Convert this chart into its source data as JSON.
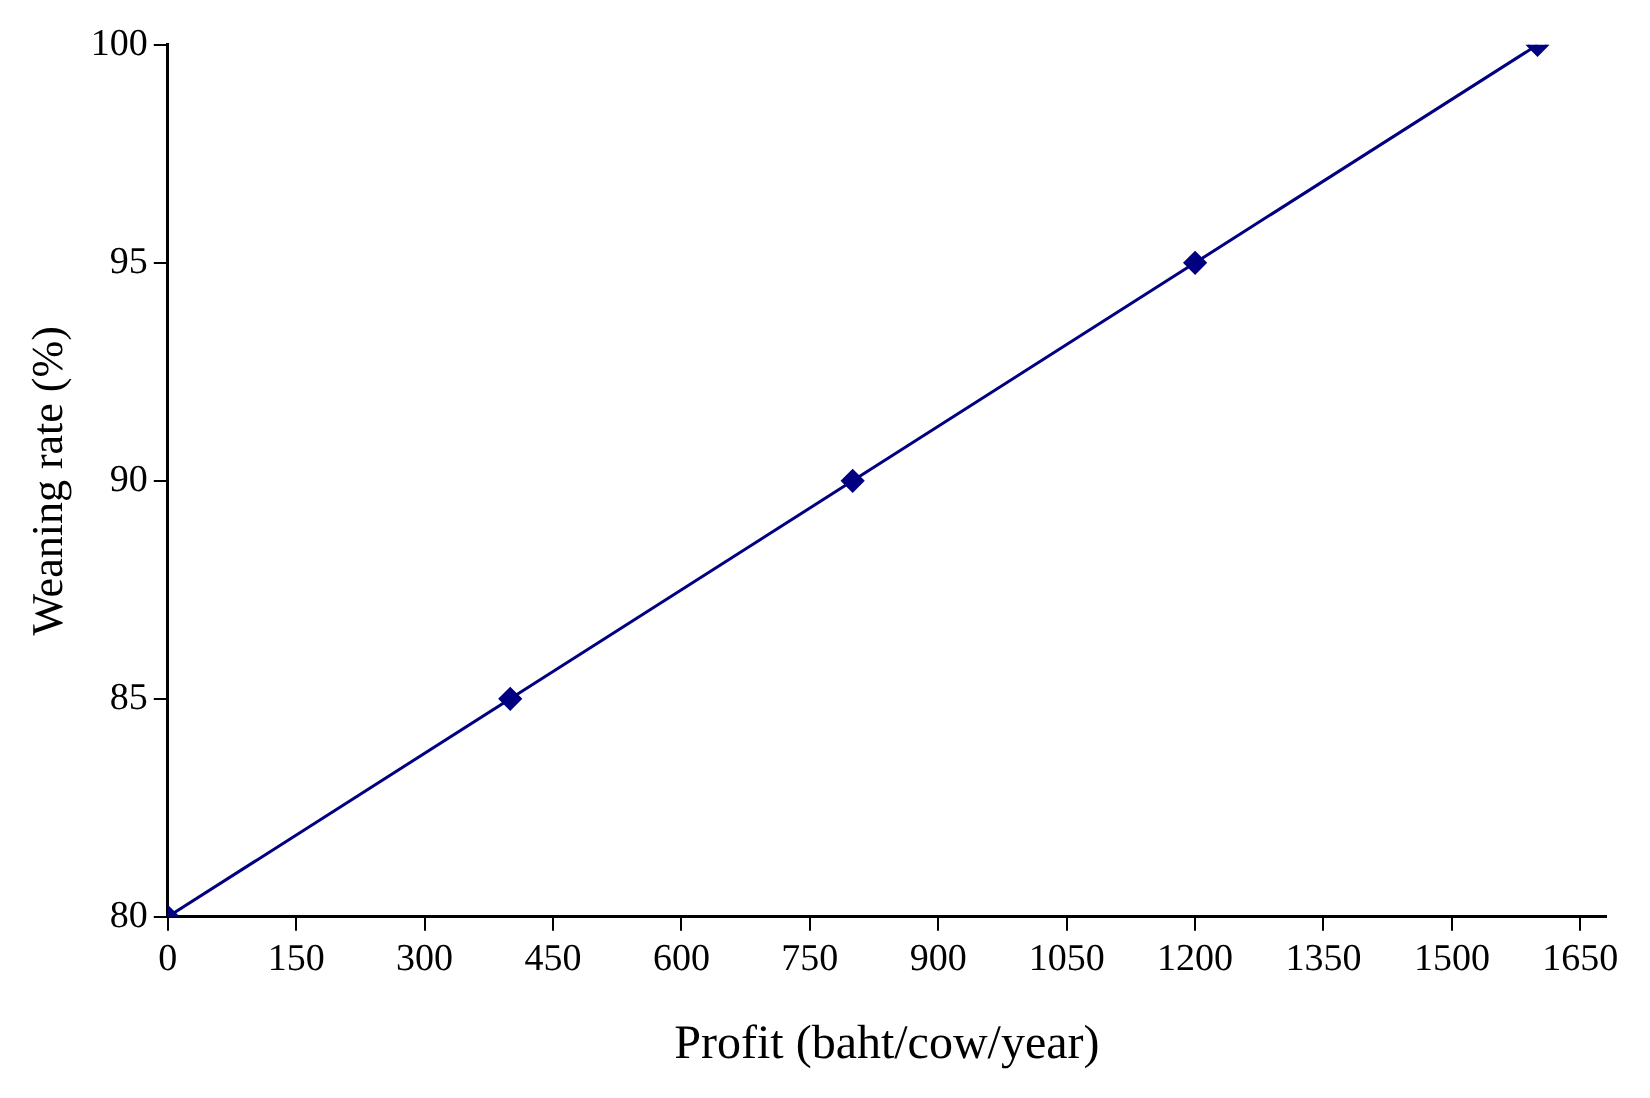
{
  "chart_data": {
    "type": "line",
    "xlabel": "Profit (baht/cow/year)",
    "ylabel": "Weaning rate (%)",
    "x": [
      0,
      400,
      800,
      1200,
      1600
    ],
    "series": [
      {
        "color": "#000080",
        "values": [
          80,
          85,
          90,
          95,
          100
        ]
      }
    ],
    "xlim": [
      0,
      1680
    ],
    "xticks": [
      0,
      150,
      300,
      450,
      600,
      750,
      900,
      1050,
      1200,
      1350,
      1500,
      1650
    ],
    "ylim": [
      80,
      100
    ],
    "yticks": [
      80,
      85,
      90,
      95,
      100
    ],
    "grid": false,
    "legend": false,
    "marker": "diamond",
    "line_style": "solid"
  }
}
